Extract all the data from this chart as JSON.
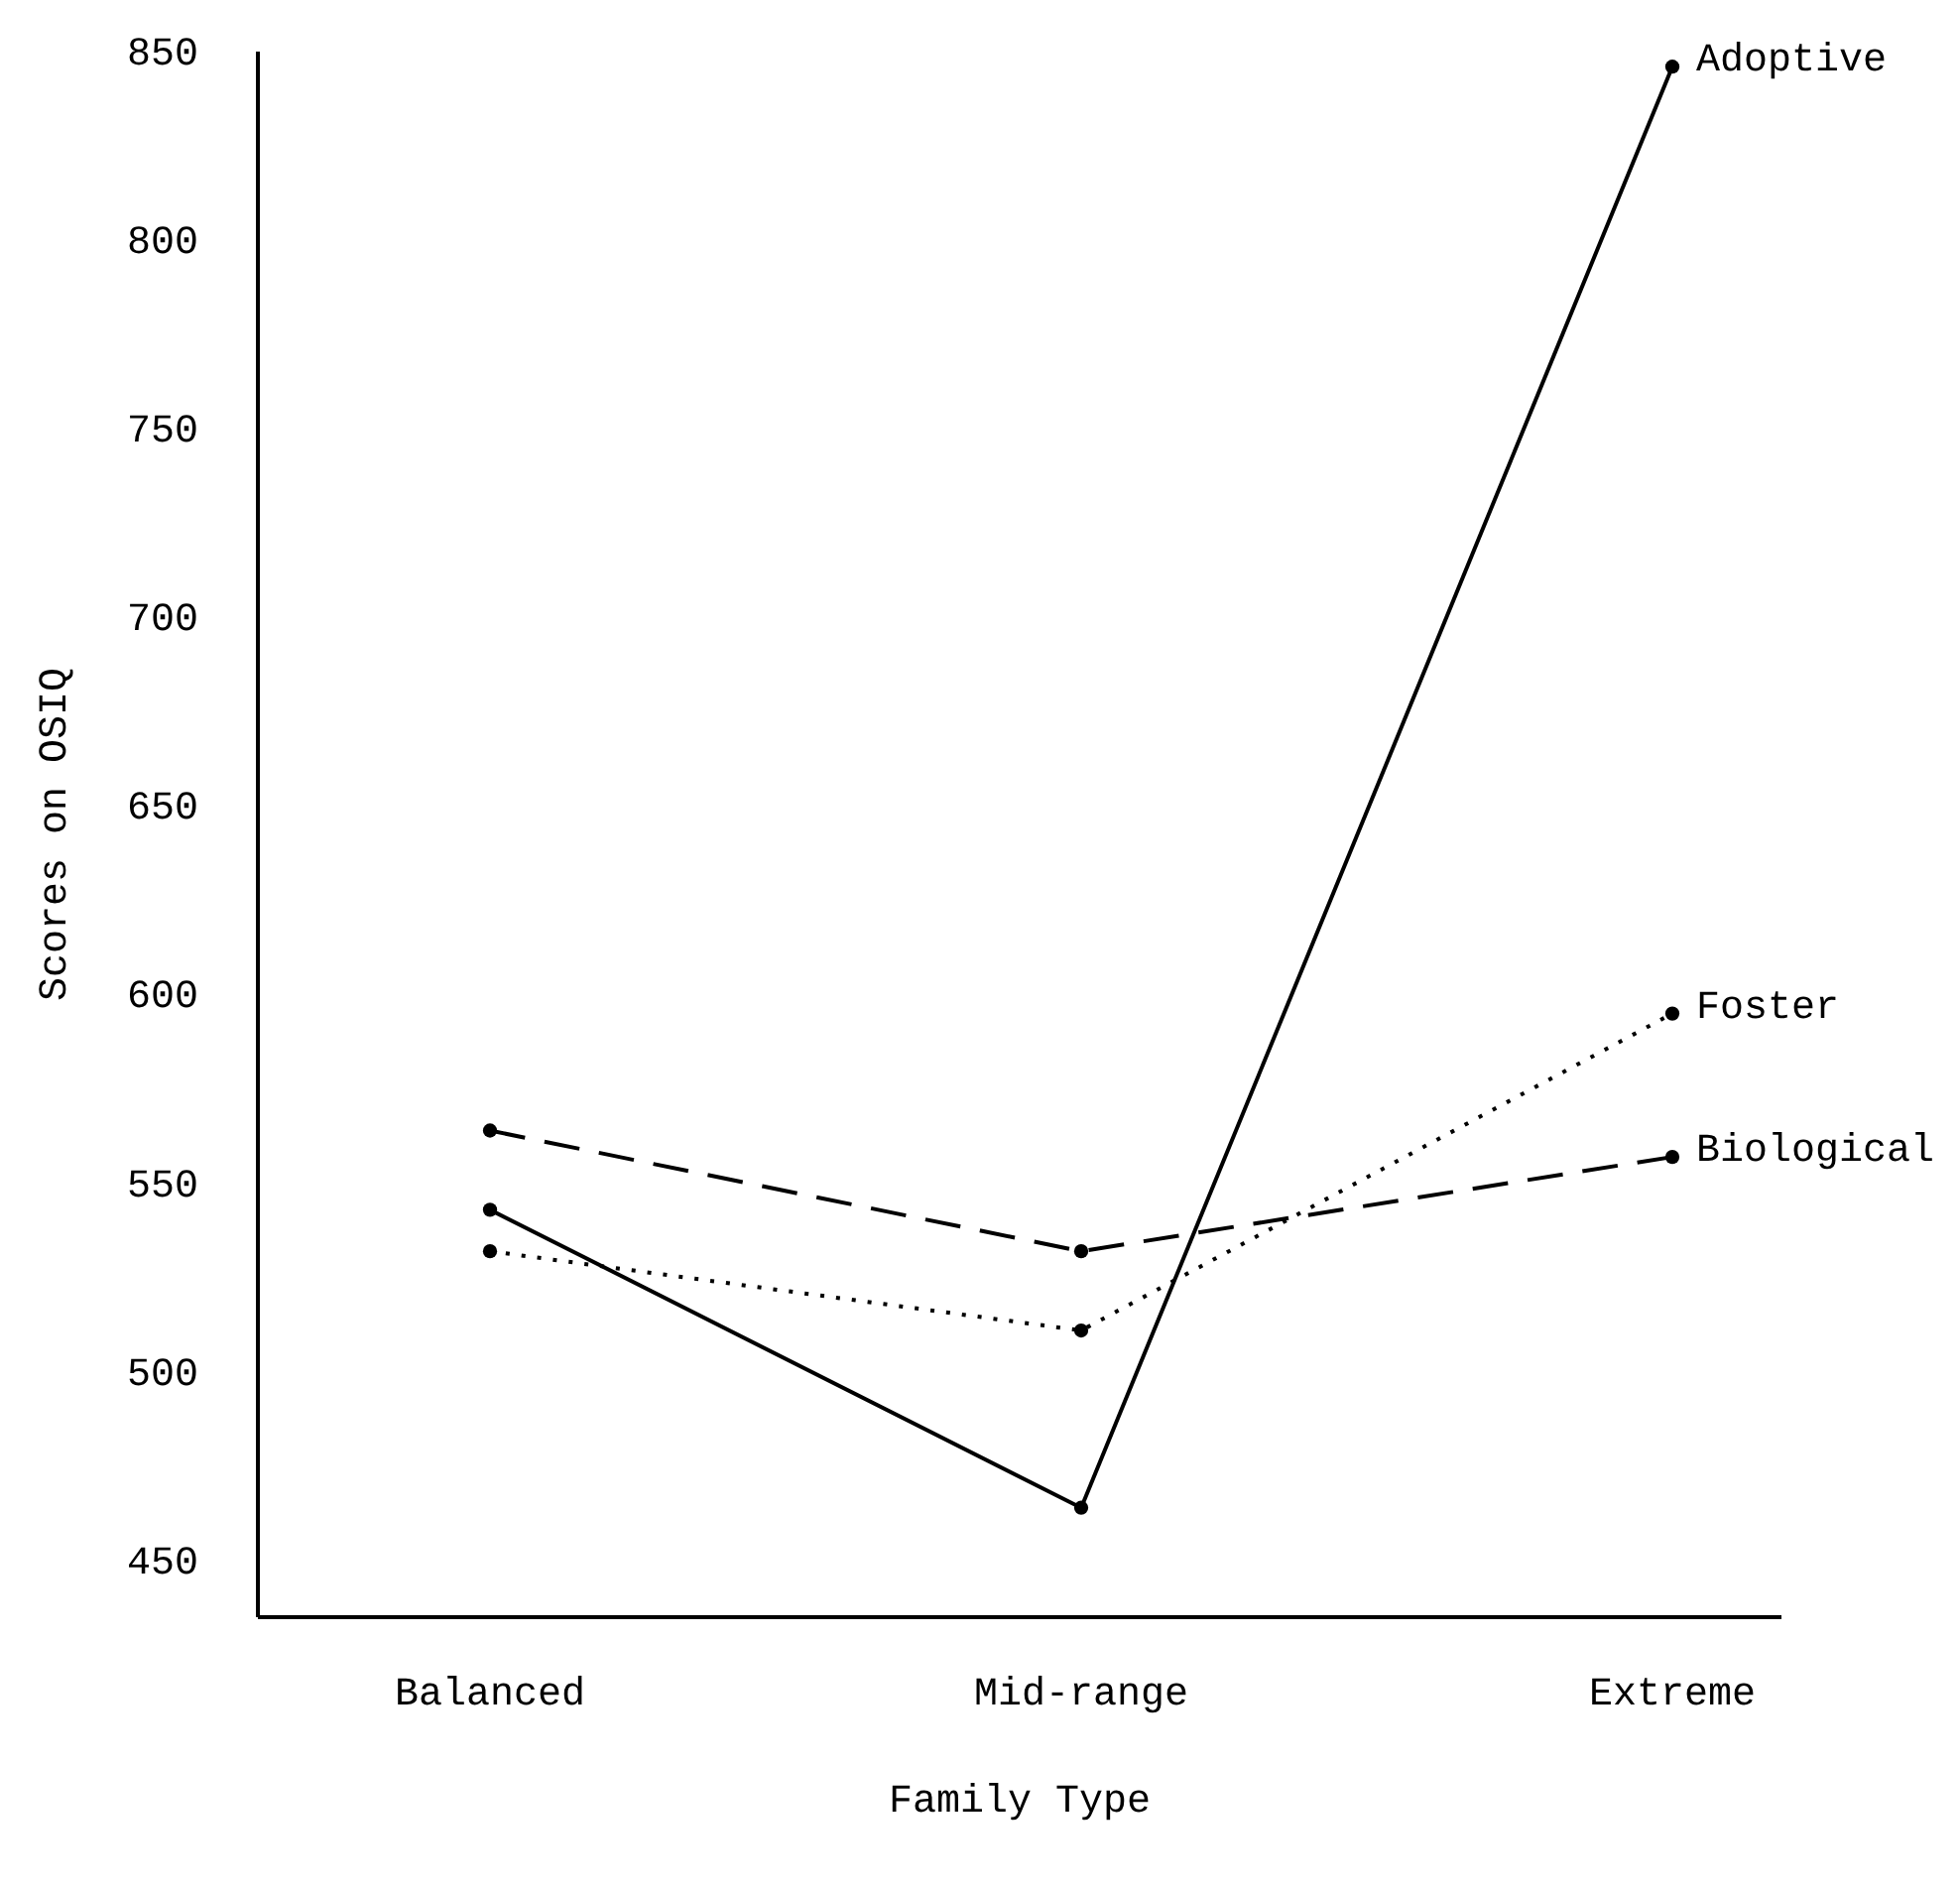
{
  "chart_data": {
    "type": "line",
    "xlabel": "Family Type",
    "ylabel": "Scores on OSIQ",
    "categories": [
      "Balanced",
      "Mid-range",
      "Extreme"
    ],
    "series": [
      {
        "name": "Adoptive",
        "color": "#000000",
        "line_style": "solid",
        "values": [
          543,
          464,
          846
        ]
      },
      {
        "name": "Foster",
        "color": "#000000",
        "line_style": "dotted",
        "values": [
          532,
          511,
          595
        ]
      },
      {
        "name": "Biological",
        "color": "#000000",
        "line_style": "dashed",
        "values": [
          564,
          532,
          557
        ]
      }
    ],
    "ylim": [
      435,
      850
    ],
    "yticks": [
      450,
      500,
      550,
      600,
      650,
      700,
      750,
      800,
      850
    ],
    "marker": "circle",
    "grid": false
  }
}
